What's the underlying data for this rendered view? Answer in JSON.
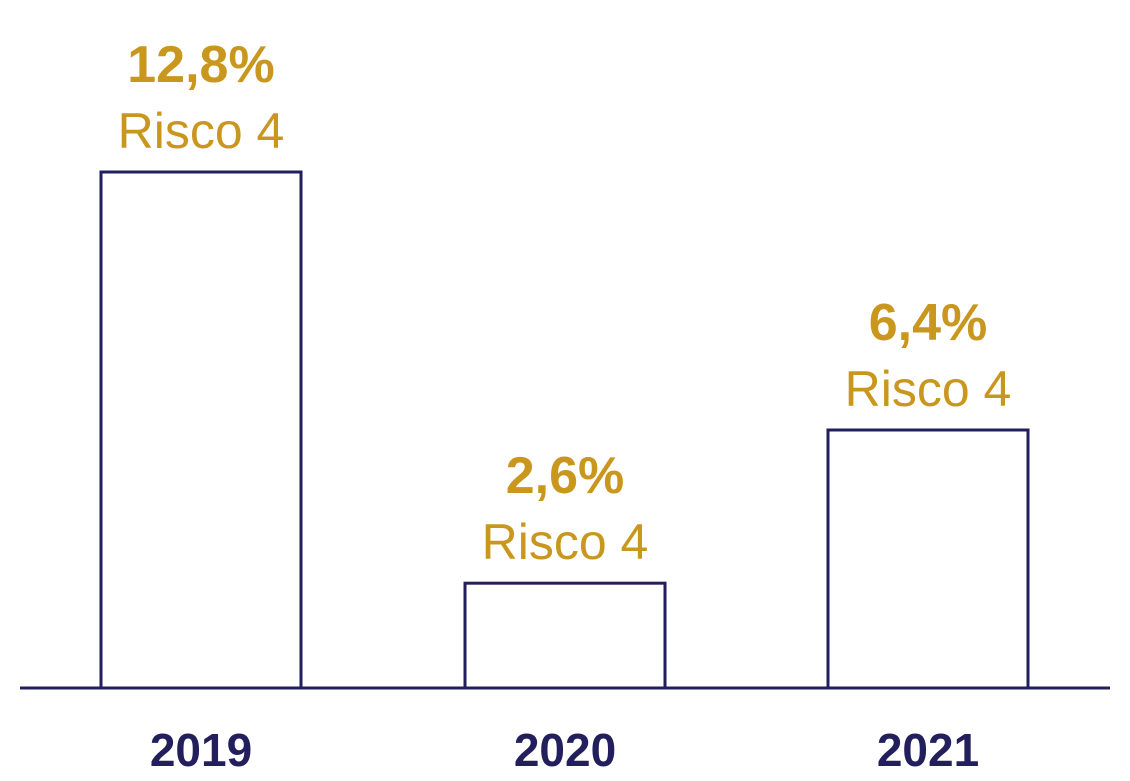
{
  "chart_data": {
    "type": "bar",
    "categories": [
      "2019",
      "2020",
      "2021"
    ],
    "values": [
      12.8,
      2.6,
      6.4
    ],
    "value_labels": [
      "12,8%",
      "2,6%",
      "6,4%"
    ],
    "risk_labels": [
      "Risco 4",
      "Risco 4",
      "Risco 4"
    ],
    "unit": "%",
    "ylim": [
      0,
      12.8
    ],
    "grid": false,
    "title": "",
    "xlabel": "",
    "ylabel": ""
  },
  "colors": {
    "bar_stroke": "#231F5C",
    "axis": "#231F5C",
    "label_gold": "#C9971E",
    "tick_text": "#231F5C",
    "background": "#FFFFFF"
  }
}
